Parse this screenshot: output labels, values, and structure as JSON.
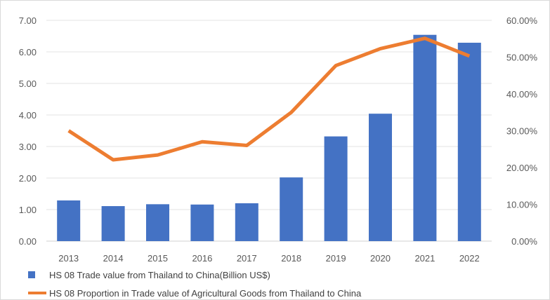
{
  "chart_data": {
    "type": "bar+line",
    "categories": [
      "2013",
      "2014",
      "2015",
      "2016",
      "2017",
      "2018",
      "2019",
      "2020",
      "2021",
      "2022"
    ],
    "series": [
      {
        "name": "HS 08 Trade value from Thailand to China(Billion US$)",
        "type": "bar",
        "axis": "left",
        "color": "#4472C4",
        "values": [
          1.29,
          1.11,
          1.17,
          1.16,
          1.2,
          2.02,
          3.32,
          4.04,
          6.54,
          6.29
        ]
      },
      {
        "name": "HS 08 Proportion in Trade value of Agricultural Goods from Thailand to China",
        "type": "line",
        "axis": "right",
        "color": "#ED7D31",
        "values": [
          30.0,
          22.1,
          23.4,
          27.0,
          26.0,
          35.0,
          47.7,
          52.3,
          55.1,
          50.3
        ]
      }
    ],
    "left_axis": {
      "ylim": [
        0,
        7
      ],
      "ticks": [
        "0.00",
        "1.00",
        "2.00",
        "3.00",
        "4.00",
        "5.00",
        "6.00",
        "7.00"
      ]
    },
    "right_axis": {
      "ylim": [
        0,
        60
      ],
      "ticks": [
        "0.00%",
        "10.00%",
        "20.00%",
        "30.00%",
        "40.00%",
        "50.00%",
        "60.00%"
      ]
    },
    "grid": true,
    "legend": "bottom-left",
    "title": "",
    "xlabel": "",
    "ylabel": ""
  }
}
